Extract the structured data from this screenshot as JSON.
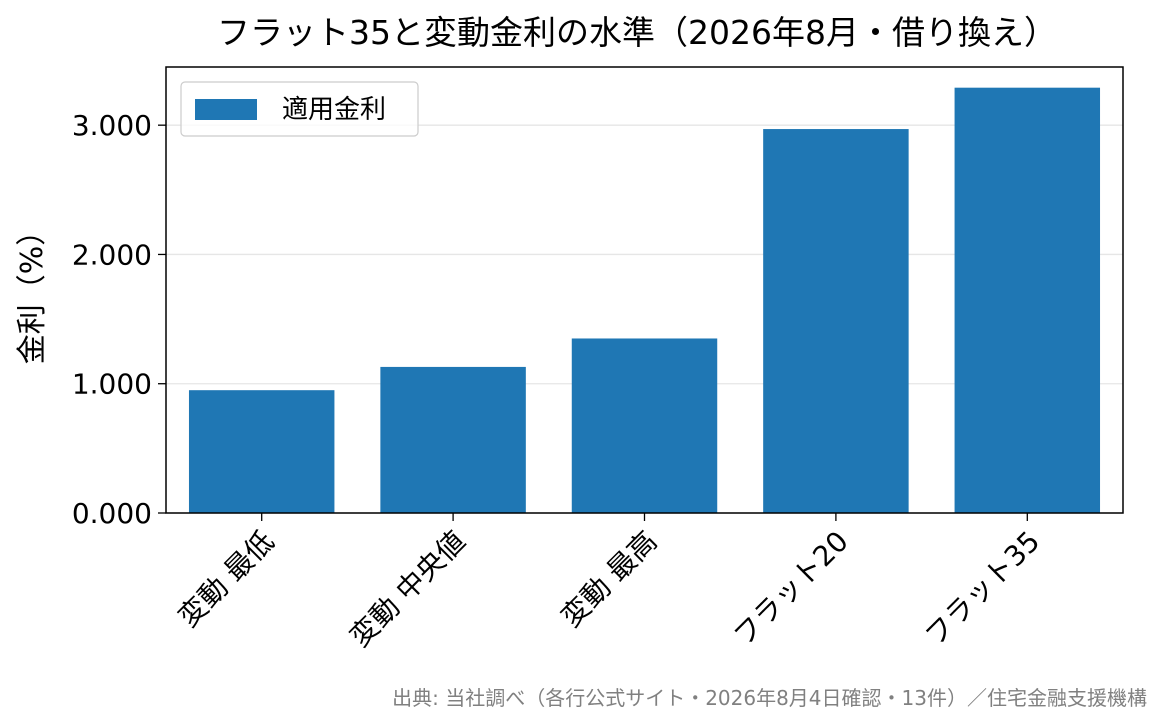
{
  "chart_data": {
    "type": "bar",
    "title": "フラット35と変動金利の水準（2026年8月・借り換え）",
    "xlabel": "",
    "ylabel": "金利（%）",
    "categories": [
      "変動 最低",
      "変動 中央値",
      "変動 最高",
      "フラット20",
      "フラット35"
    ],
    "series": [
      {
        "name": "適用金利",
        "color": "#1f77b4",
        "values": [
          0.95,
          1.13,
          1.35,
          2.97,
          3.29
        ]
      }
    ],
    "ylim": [
      0,
      3.45
    ],
    "yticks": [
      0,
      1,
      2,
      3
    ],
    "ytick_labels": [
      "0.000",
      "1.000",
      "2.000",
      "3.000"
    ],
    "grid": "horizontal",
    "legend_position": "upper-left",
    "source_note": "出典: 当社調べ（各行公式サイト・2026年8月4日確認・13件）／住宅金融支援機構"
  }
}
